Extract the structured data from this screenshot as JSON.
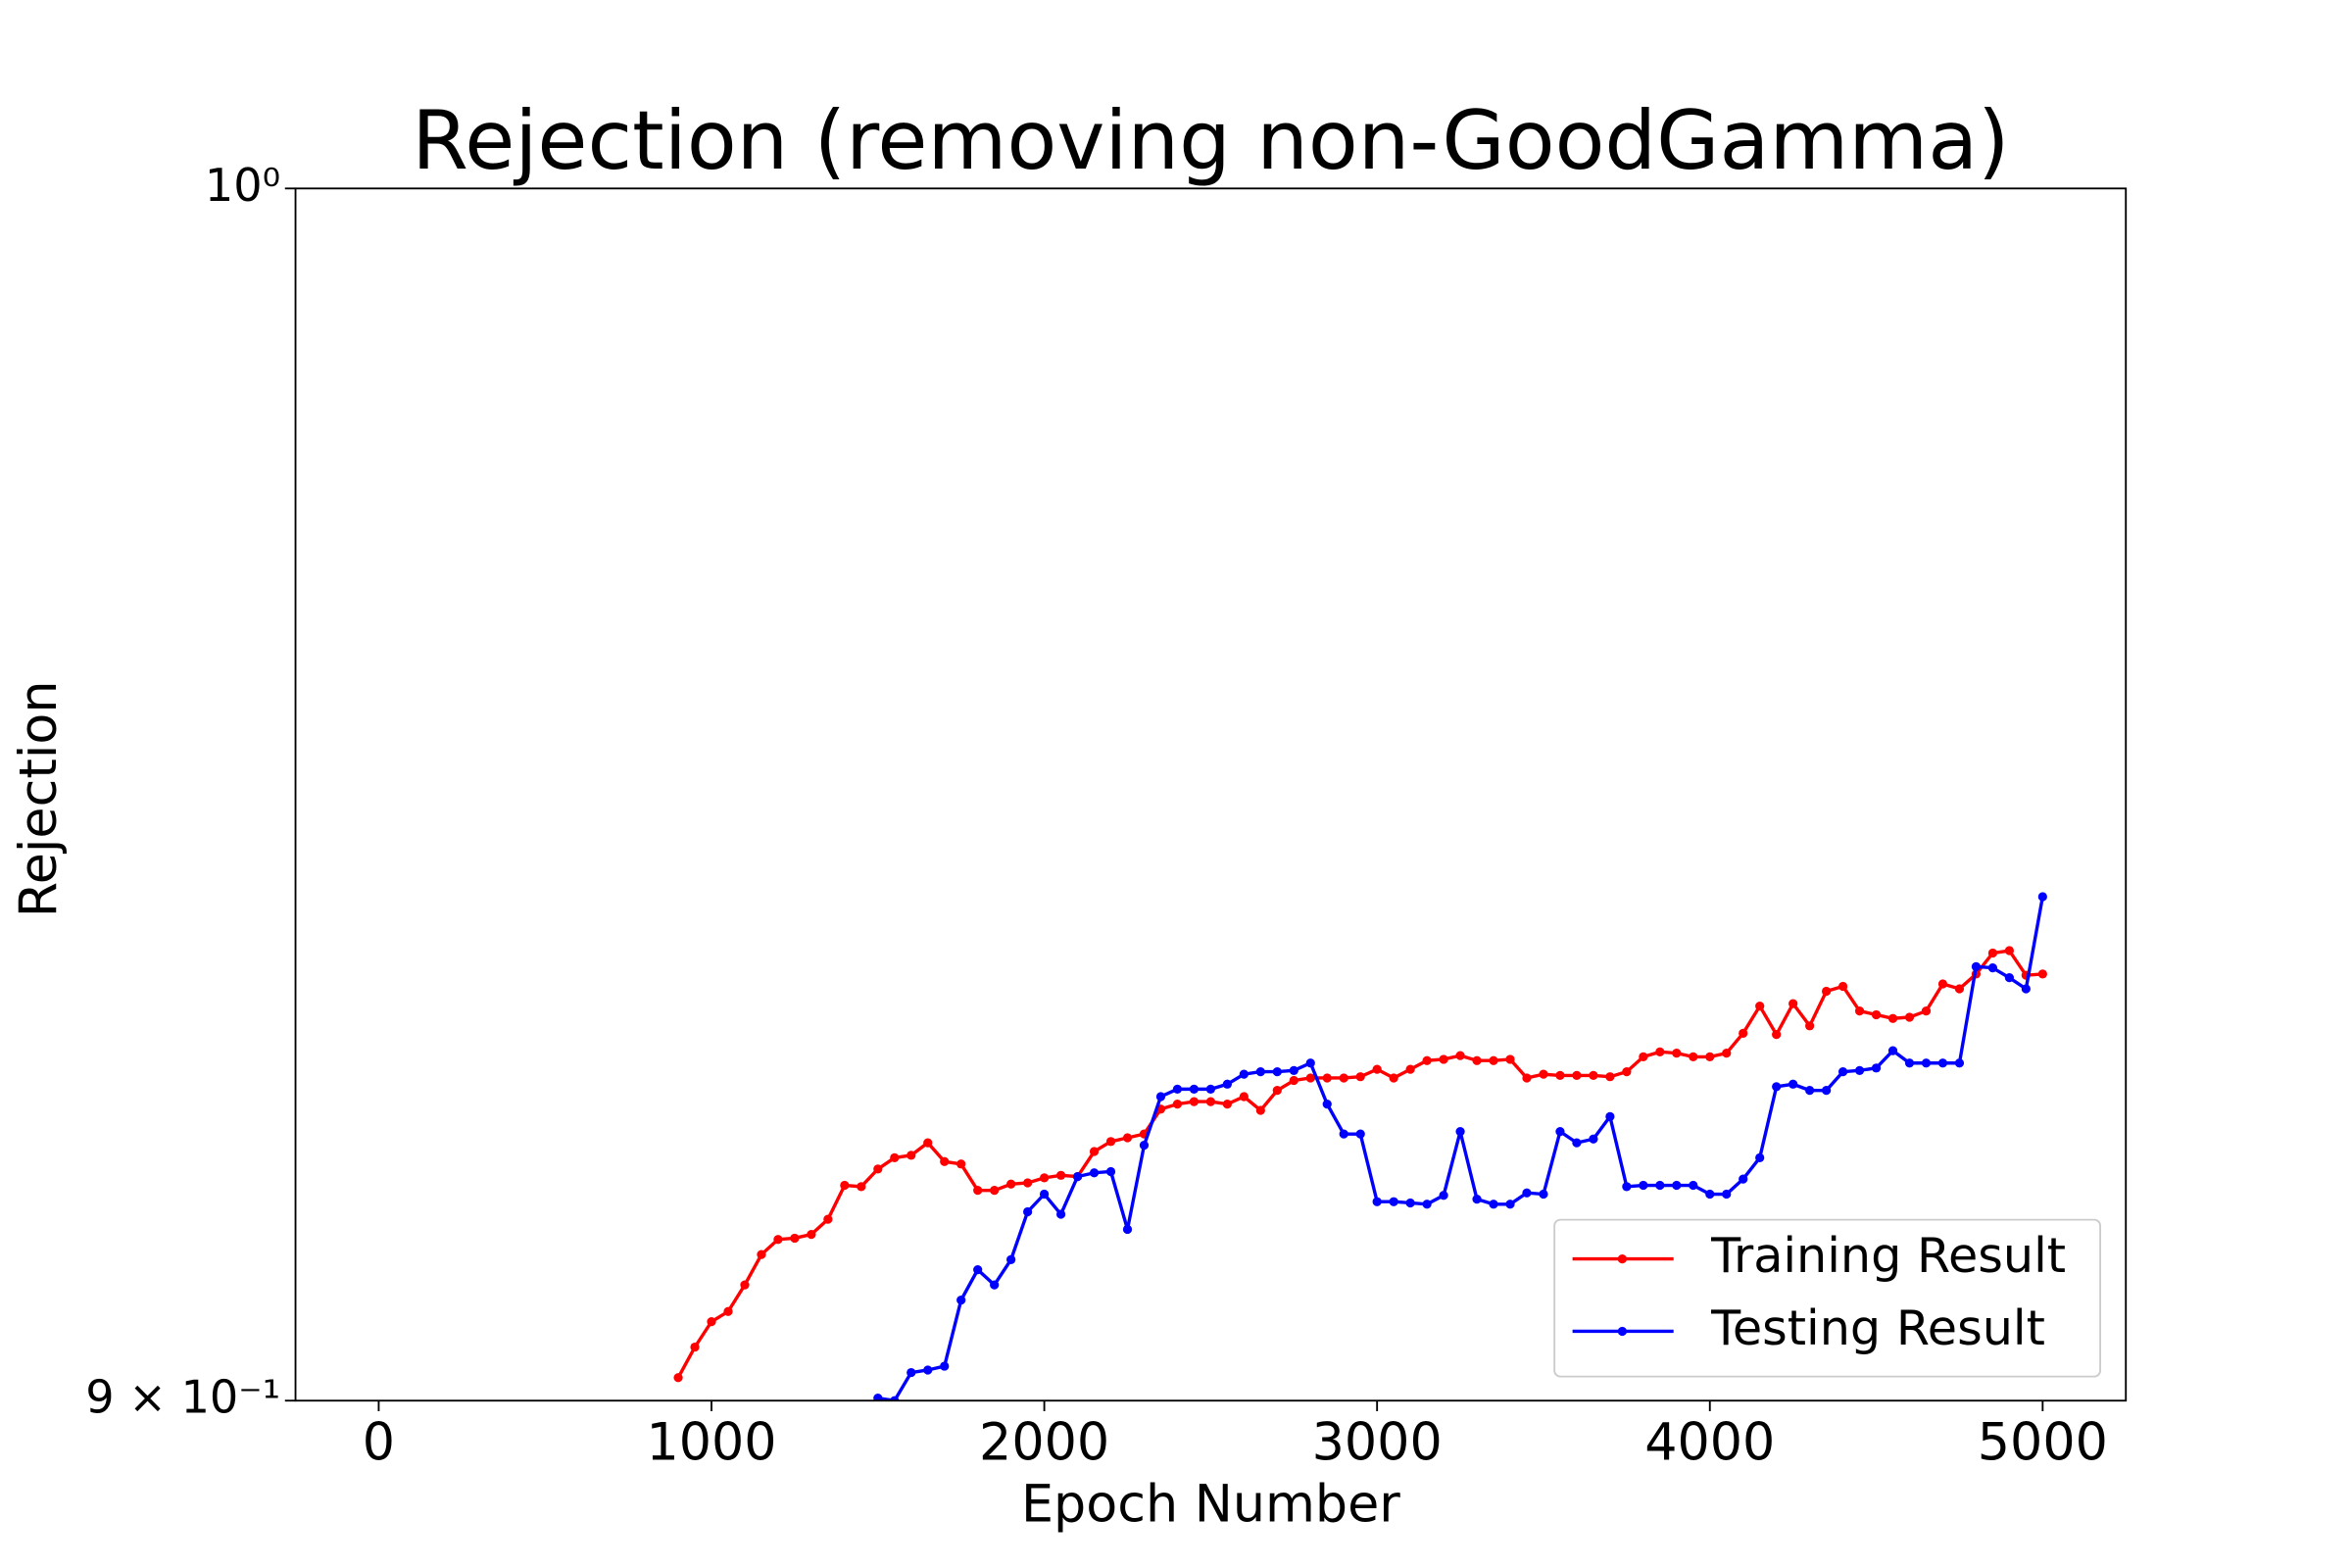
{
  "chart_data": {
    "type": "line",
    "title": "Rejection (removing non-GoodGamma)",
    "x_label": "Epoch Number",
    "y_label": "Rejection",
    "xlim": [
      -250,
      5250
    ],
    "xticks": [
      0,
      1000,
      2000,
      3000,
      4000,
      5000
    ],
    "ylim": [
      0.9,
      1.0
    ],
    "yticks": [
      {
        "value": 0.9,
        "label": "9 × 10⁻¹"
      },
      {
        "value": 1.0,
        "label": "10⁰"
      }
    ],
    "y_scale": "log",
    "legend": "lower right",
    "series": [
      {
        "name": "Training Result",
        "color": "#ff0000",
        "x": [
          900,
          950,
          1000,
          1050,
          1100,
          1150,
          1200,
          1250,
          1300,
          1350,
          1400,
          1450,
          1500,
          1550,
          1600,
          1650,
          1700,
          1750,
          1800,
          1850,
          1900,
          1950,
          2000,
          2050,
          2100,
          2150,
          2200,
          2250,
          2300,
          2350,
          2400,
          2450,
          2500,
          2550,
          2600,
          2650,
          2700,
          2750,
          2800,
          2850,
          2900,
          2950,
          3000,
          3050,
          3100,
          3150,
          3200,
          3250,
          3300,
          3350,
          3400,
          3450,
          3500,
          3550,
          3600,
          3650,
          3700,
          3750,
          3800,
          3850,
          3900,
          3950,
          4000,
          4050,
          4100,
          4150,
          4200,
          4250,
          4300,
          4350,
          4400,
          4450,
          4500,
          4550,
          4600,
          4650,
          4700,
          4750,
          4800,
          4850,
          4900,
          4950,
          5000
        ],
        "values": [
          0.9018,
          0.9042,
          0.9062,
          0.907,
          0.9091,
          0.9115,
          0.9127,
          0.9128,
          0.9131,
          0.9143,
          0.917,
          0.9169,
          0.9183,
          0.9192,
          0.9194,
          0.9204,
          0.9189,
          0.9187,
          0.9166,
          0.9166,
          0.9171,
          0.9172,
          0.9176,
          0.9178,
          0.9177,
          0.9197,
          0.9205,
          0.9208,
          0.9211,
          0.9231,
          0.9235,
          0.9237,
          0.9237,
          0.9235,
          0.9241,
          0.923,
          0.9246,
          0.9254,
          0.9256,
          0.9256,
          0.9256,
          0.9257,
          0.9263,
          0.9256,
          0.9263,
          0.927,
          0.9271,
          0.9274,
          0.927,
          0.927,
          0.9271,
          0.9256,
          0.9259,
          0.9258,
          0.9258,
          0.9258,
          0.9257,
          0.9261,
          0.9273,
          0.9277,
          0.9276,
          0.9273,
          0.9273,
          0.9276,
          0.9292,
          0.9314,
          0.9291,
          0.9316,
          0.9298,
          0.9326,
          0.933,
          0.931,
          0.9307,
          0.9304,
          0.9305,
          0.931,
          0.9332,
          0.9328,
          0.934,
          0.9357,
          0.9359,
          0.9339,
          0.934
        ]
      },
      {
        "name": "Testing Result",
        "color": "#0000ff",
        "x": [
          1500,
          1550,
          1600,
          1650,
          1700,
          1750,
          1800,
          1850,
          1900,
          1950,
          2000,
          2050,
          2100,
          2150,
          2200,
          2250,
          2300,
          2350,
          2400,
          2450,
          2500,
          2550,
          2600,
          2650,
          2700,
          2750,
          2800,
          2850,
          2900,
          2950,
          3000,
          3050,
          3100,
          3150,
          3200,
          3250,
          3300,
          3350,
          3400,
          3450,
          3500,
          3550,
          3600,
          3650,
          3700,
          3750,
          3800,
          3850,
          3900,
          3950,
          4000,
          4050,
          4100,
          4150,
          4200,
          4250,
          4300,
          4350,
          4400,
          4450,
          4500,
          4550,
          4600,
          4650,
          4700,
          4750,
          4800,
          4850,
          4900,
          4950,
          5000
        ],
        "values": [
          0.9002,
          0.9,
          0.9022,
          0.9024,
          0.9027,
          0.9079,
          0.9103,
          0.9091,
          0.9111,
          0.9149,
          0.9163,
          0.9147,
          0.9177,
          0.918,
          0.9181,
          0.9135,
          0.9202,
          0.9241,
          0.9247,
          0.9247,
          0.9247,
          0.9251,
          0.9259,
          0.9261,
          0.9261,
          0.9262,
          0.9268,
          0.9235,
          0.9211,
          0.9211,
          0.9157,
          0.9157,
          0.9156,
          0.9155,
          0.9162,
          0.9213,
          0.9159,
          0.9155,
          0.9155,
          0.9164,
          0.9163,
          0.9213,
          0.9204,
          0.9207,
          0.9225,
          0.9169,
          0.917,
          0.917,
          0.917,
          0.917,
          0.9163,
          0.9163,
          0.9175,
          0.9192,
          0.9249,
          0.9251,
          0.9246,
          0.9246,
          0.9261,
          0.9262,
          0.9264,
          0.9278,
          0.9268,
          0.9268,
          0.9268,
          0.9268,
          0.9346,
          0.9345,
          0.9337,
          0.9328,
          0.9403
        ]
      }
    ]
  }
}
